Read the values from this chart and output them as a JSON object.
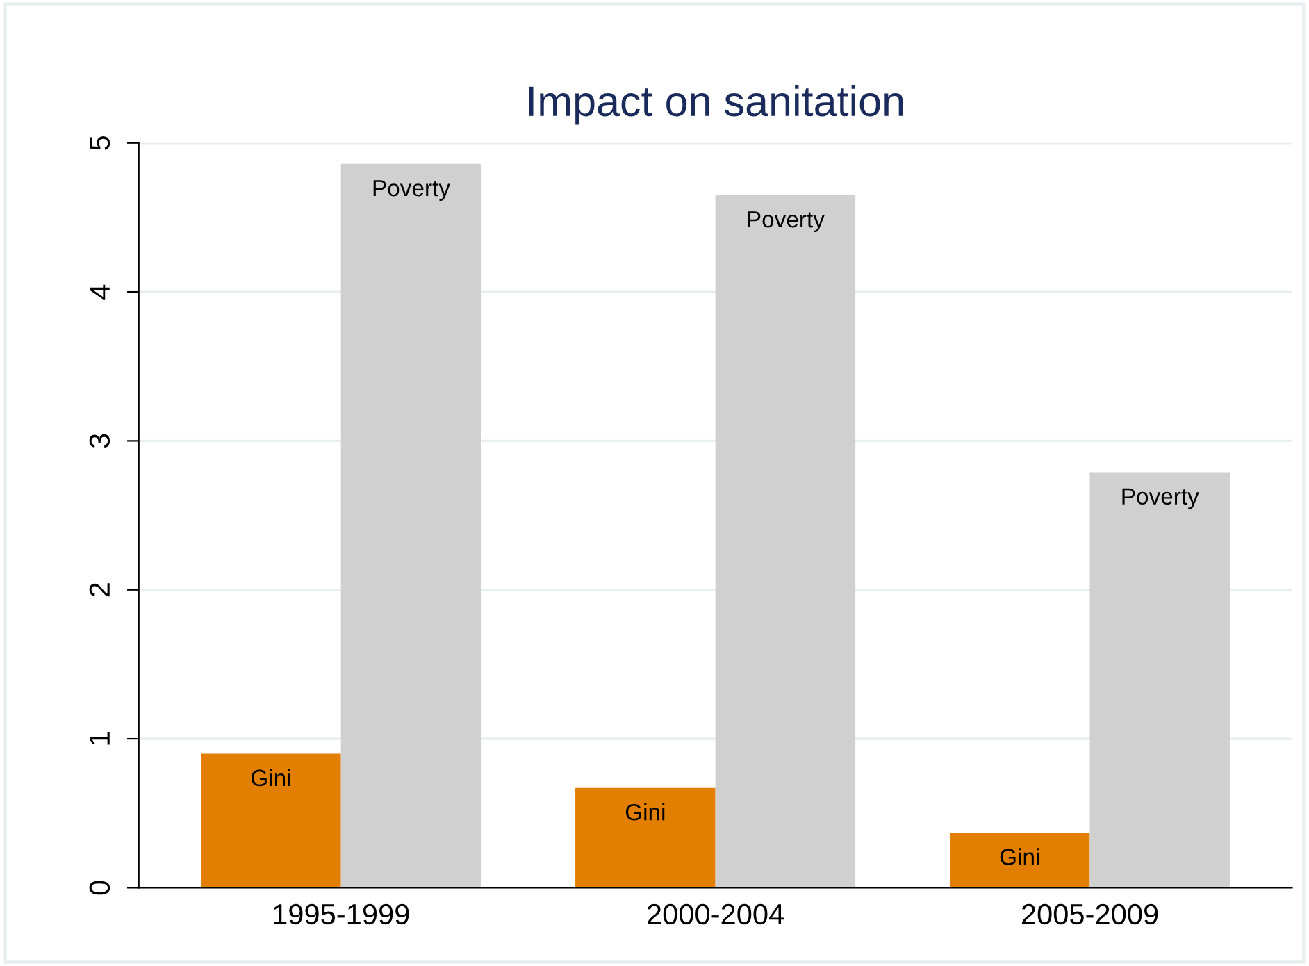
{
  "chart_data": {
    "type": "bar",
    "title": "Impact on sanitation",
    "categories": [
      "1995-1999",
      "2000-2004",
      "2005-2009"
    ],
    "series": [
      {
        "name": "Gini",
        "color": "#e37f00",
        "values": [
          0.9,
          0.67,
          0.37
        ]
      },
      {
        "name": "Poverty",
        "color": "#d0d0d0",
        "values": [
          4.86,
          4.65,
          2.79
        ]
      }
    ],
    "ylim": [
      0,
      5
    ],
    "yticks": [
      0,
      1,
      2,
      3,
      4,
      5
    ],
    "grid": "y",
    "legend": false
  }
}
